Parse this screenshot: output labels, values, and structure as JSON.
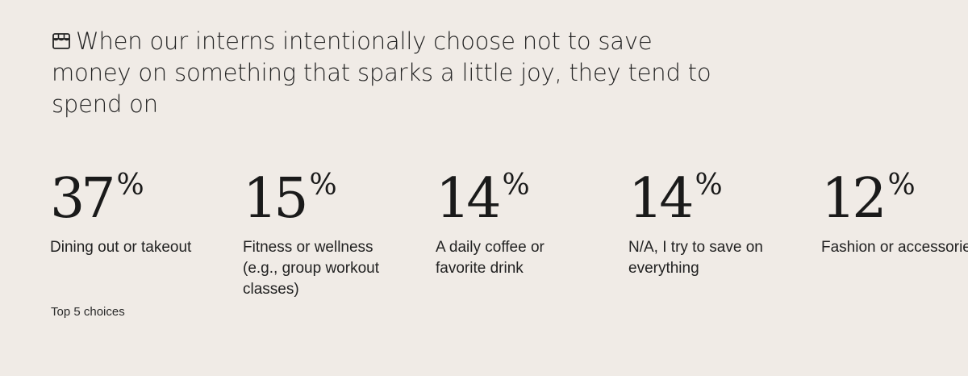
{
  "headline": {
    "icon": "storefront-icon",
    "text": "When our interns intentionally choose not to save money on something that sparks a little joy, they tend to spend on"
  },
  "chart_data": {
    "type": "table",
    "title": "When our interns intentionally choose not to save money on something that sparks a little joy, they tend to spend on",
    "unit": "%",
    "categories": [
      "Dining out or takeout",
      "Fitness or wellness (e.g., group workout classes)",
      "A daily coffee or favorite drink",
      "N/A, I try to save on everything",
      "Fashion or accessories"
    ],
    "values": [
      37,
      15,
      14,
      14,
      12
    ],
    "items": [
      {
        "value": "37",
        "unit": "%",
        "label": "Dining out or takeout"
      },
      {
        "value": "15",
        "unit": "%",
        "label": "Fitness or wellness (e.g., group workout classes)"
      },
      {
        "value": "14",
        "unit": "%",
        "label": "A daily coffee or favorite drink"
      },
      {
        "value": "14",
        "unit": "%",
        "label": "N/A, I try to save on everything"
      },
      {
        "value": "12",
        "unit": "%",
        "label": "Fashion or accessories"
      }
    ],
    "footnote": "Top 5 choices"
  }
}
